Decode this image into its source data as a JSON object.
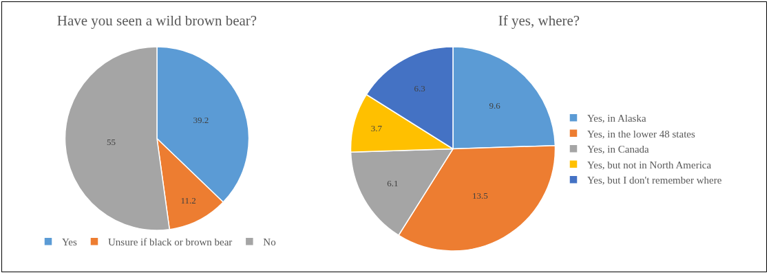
{
  "chart_data": [
    {
      "type": "pie",
      "title": "Have you seen a wild brown bear?",
      "categories": [
        "Yes",
        "Unsure if black or brown bear",
        "No"
      ],
      "values": [
        39.2,
        11.2,
        55
      ],
      "colors": [
        "#5b9bd5",
        "#ed7d31",
        "#a5a5a5"
      ],
      "data_labels": true,
      "legend": "bottom"
    },
    {
      "type": "pie",
      "title": "If yes, where?",
      "categories": [
        "Yes, in Alaska",
        "Yes, in the lower 48 states",
        "Yes, in Canada",
        "Yes, but not in North America",
        "Yes, but I don't remember where"
      ],
      "values": [
        9.6,
        13.5,
        6.1,
        3.7,
        6.3
      ],
      "colors": [
        "#5b9bd5",
        "#ed7d31",
        "#a5a5a5",
        "#ffc000",
        "#4472c4"
      ],
      "data_labels": true,
      "legend": "right"
    }
  ]
}
